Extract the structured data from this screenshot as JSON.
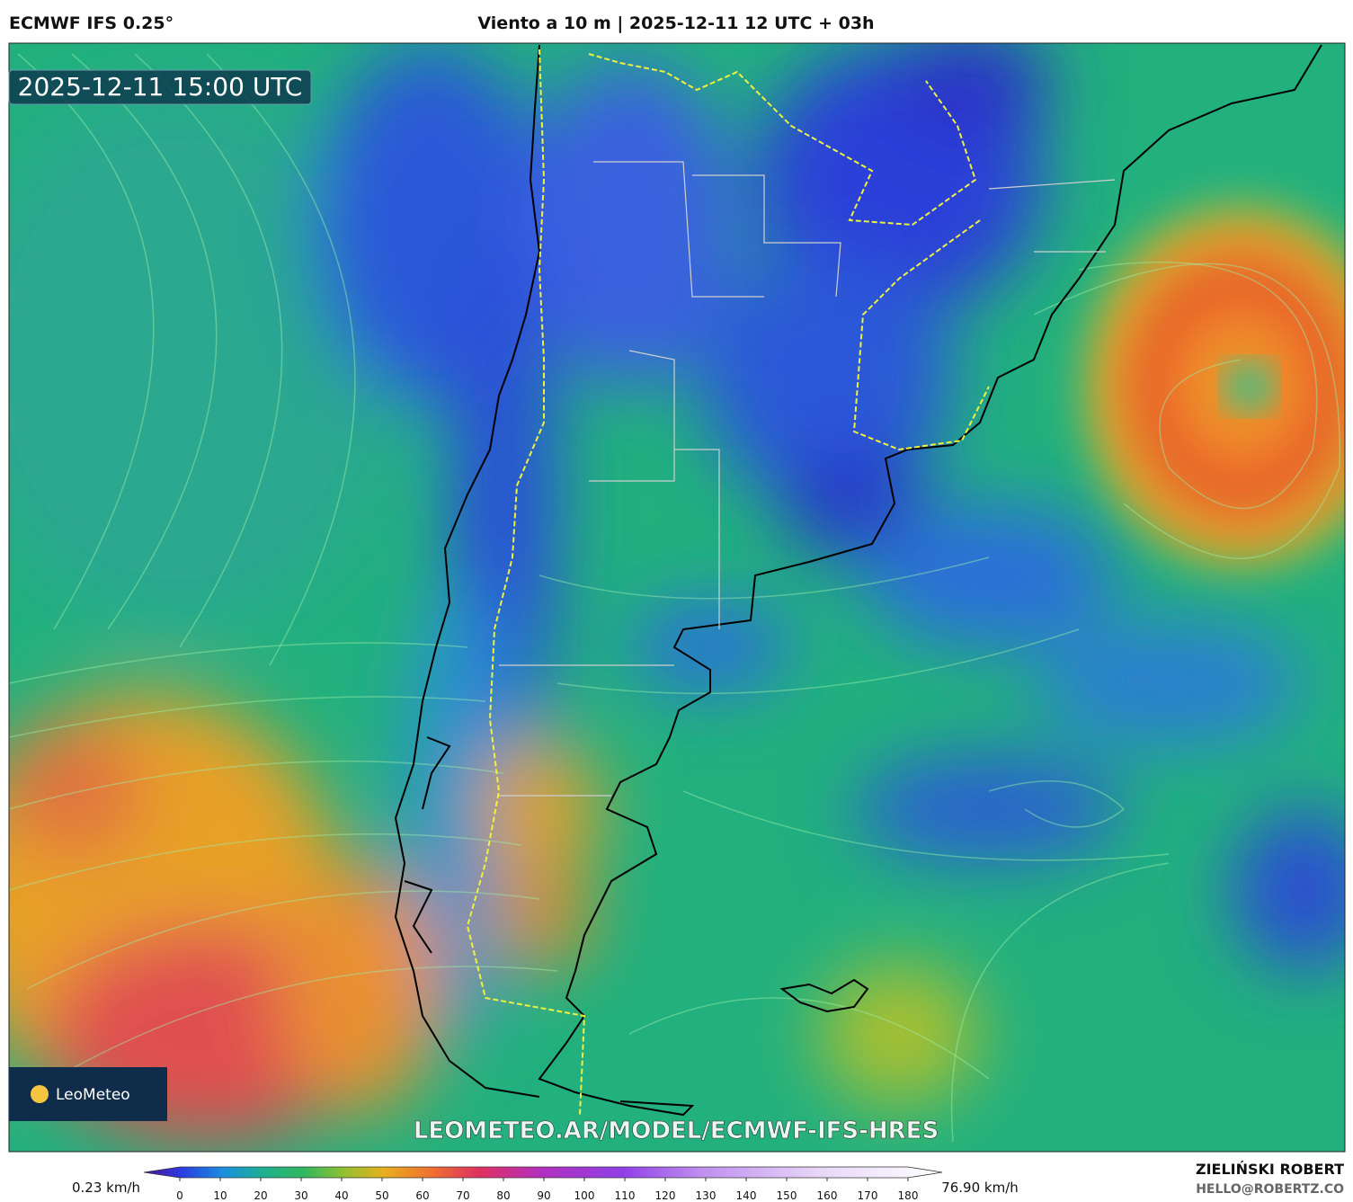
{
  "header": {
    "model": "ECMWF IFS 0.25°",
    "title": "Viento a 10 m | 2025-12-11 12 UTC + 03h"
  },
  "map": {
    "valid_time": "2025-12-11 15:00 UTC",
    "logo": "LeoMeteo",
    "watermark": "LEOMETEO.AR/MODEL/ECMWF-IFS-HRES"
  },
  "colorbar": {
    "min_label": "0.23 km/h",
    "max_label": "76.90 km/h",
    "ticks": [
      0,
      10,
      20,
      30,
      40,
      50,
      60,
      70,
      80,
      90,
      100,
      110,
      120,
      130,
      140,
      150,
      160,
      170,
      180
    ]
  },
  "credit": {
    "author": "ZIELIŃSKI ROBERT",
    "email": "HELLO@ROBERTZ.CO"
  }
}
